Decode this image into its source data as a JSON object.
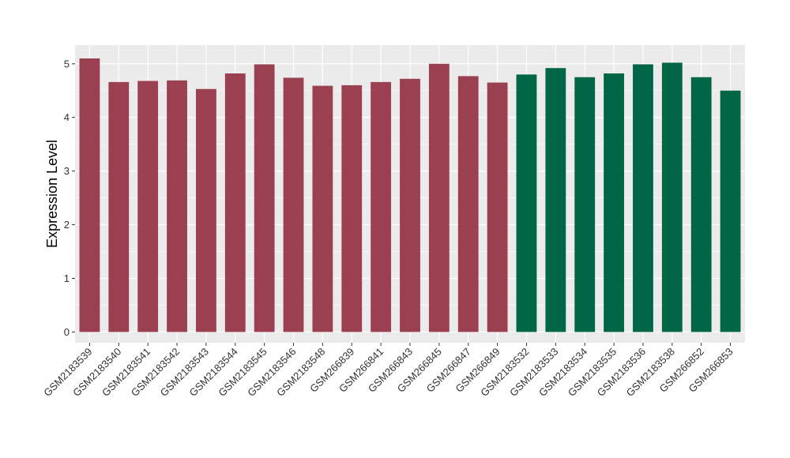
{
  "chart_data": {
    "type": "bar",
    "title": "",
    "xlabel": "",
    "ylabel": "Expression Level",
    "ylim": [
      -0.2,
      5.35
    ],
    "yticks": [
      0,
      1,
      2,
      3,
      4,
      5
    ],
    "grid": true,
    "legend": "none",
    "categories": [
      "GSM2183539",
      "GSM2183540",
      "GSM2183541",
      "GSM2183542",
      "GSM2183543",
      "GSM2183544",
      "GSM2183545",
      "GSM2183546",
      "GSM2183548",
      "GSM266839",
      "GSM266841",
      "GSM266843",
      "GSM266845",
      "GSM266847",
      "GSM266849",
      "GSM2183532",
      "GSM2183533",
      "GSM2183534",
      "GSM2183535",
      "GSM2183536",
      "GSM2183538",
      "GSM266852",
      "GSM266853"
    ],
    "values": [
      5.1,
      4.66,
      4.68,
      4.69,
      4.53,
      4.82,
      4.99,
      4.74,
      4.59,
      4.6,
      4.66,
      4.72,
      5.0,
      4.77,
      4.65,
      4.8,
      4.92,
      4.75,
      4.82,
      4.99,
      5.02,
      4.75,
      4.5
    ],
    "groups": [
      "a",
      "a",
      "a",
      "a",
      "a",
      "a",
      "a",
      "a",
      "a",
      "a",
      "a",
      "a",
      "a",
      "a",
      "a",
      "b",
      "b",
      "b",
      "b",
      "b",
      "b",
      "b",
      "b"
    ],
    "colors": {
      "a": "#9b4050",
      "b": "#006646"
    },
    "panel_background": "#ebebeb",
    "grid_color": "#ffffff"
  }
}
